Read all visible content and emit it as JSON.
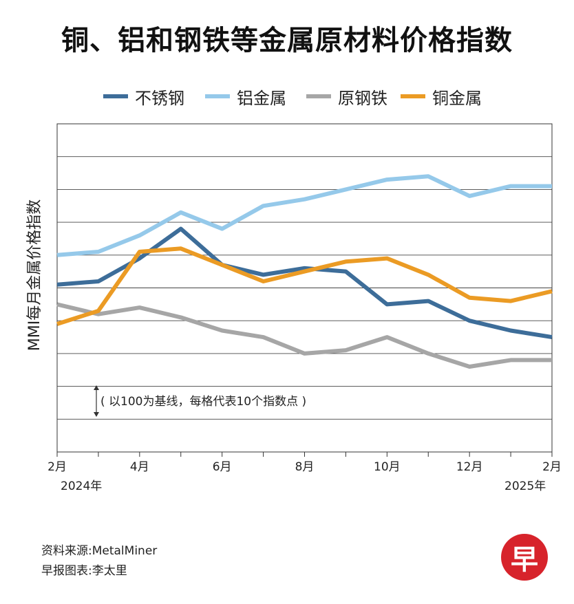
{
  "title": "铜、铝和钢铁等金属原材料价格指数",
  "note": "( 以100为基线，每格代表10个指数点 )",
  "source": "资料来源:MetalMiner",
  "credit": "早报图表:李太里",
  "logo_char": "早",
  "chart_data": {
    "type": "line",
    "ylabel": "MMI每月金属价格指数",
    "x_tick_labels": [
      "2月",
      "4月",
      "6月",
      "8月",
      "10月",
      "12月",
      "2月"
    ],
    "x_year_labels": [
      "2024年",
      "2025年"
    ],
    "x": [
      "2024-02",
      "2024-03",
      "2024-04",
      "2024-05",
      "2024-06",
      "2024-07",
      "2024-08",
      "2024-09",
      "2024-10",
      "2024-11",
      "2024-12",
      "2025-01",
      "2025-02"
    ],
    "ylim": [
      0,
      100
    ],
    "grid": true,
    "legend_position": "top",
    "series": [
      {
        "name": "不锈钢",
        "color": "#3d6d99",
        "values": [
          51,
          52,
          59,
          68,
          57,
          54,
          56,
          55,
          45,
          46,
          40,
          37,
          35
        ]
      },
      {
        "name": "铝金属",
        "color": "#95c9ea",
        "values": [
          60,
          61,
          66,
          73,
          68,
          75,
          77,
          80,
          83,
          84,
          78,
          81,
          81
        ]
      },
      {
        "name": "原钢铁",
        "color": "#a6a6a6",
        "values": [
          45,
          42,
          44,
          41,
          37,
          35,
          30,
          31,
          35,
          30,
          26,
          28,
          28
        ]
      },
      {
        "name": "铜金属",
        "color": "#eb9b24",
        "values": [
          39,
          43,
          61,
          62,
          57,
          52,
          55,
          58,
          59,
          54,
          47,
          46,
          49
        ]
      }
    ]
  }
}
